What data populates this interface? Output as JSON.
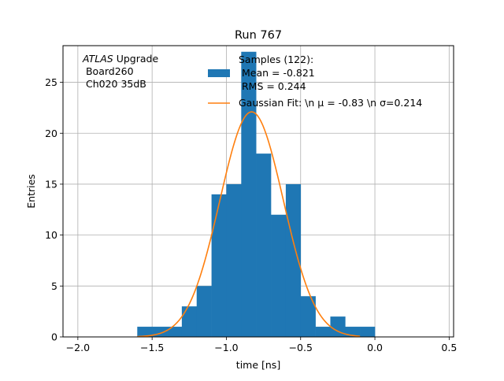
{
  "chart_data": {
    "type": "bar",
    "title": "Run 767",
    "xlabel": "time [ns]",
    "ylabel": "Entries",
    "xlim": [
      -2.1,
      0.53
    ],
    "ylim": [
      0,
      28.6
    ],
    "grid": true,
    "xticks": [
      -2.0,
      -1.5,
      -1.0,
      -0.5,
      0.0,
      0.5
    ],
    "xtick_labels": [
      "−2.0",
      "−1.5",
      "−1.0",
      "−0.5",
      "0.0",
      "0.5"
    ],
    "yticks": [
      0,
      5,
      10,
      15,
      20,
      25
    ],
    "ytick_labels": [
      "0",
      "5",
      "10",
      "15",
      "20",
      "25"
    ],
    "histogram": {
      "bin_edges": [
        -1.6,
        -1.5,
        -1.4,
        -1.3,
        -1.2,
        -1.1,
        -1.0,
        -0.9,
        -0.8,
        -0.7,
        -0.6,
        -0.5,
        -0.4,
        -0.3,
        -0.2,
        -0.1,
        0.0
      ],
      "counts": [
        1,
        1,
        1,
        3,
        5,
        14,
        15,
        28,
        18,
        12,
        15,
        4,
        1,
        2,
        1,
        1
      ],
      "color": "#1f77b4"
    },
    "fit": {
      "type": "gaussian",
      "mu": -0.83,
      "sigma": 0.214,
      "peak": 22.1,
      "x_range": [
        -1.6,
        -0.1
      ],
      "color": "#ff7f0e"
    },
    "text_annotation": {
      "line1_italic": "ATLAS",
      "line1_rest": " Upgrade",
      "line2": " Board260",
      "line3": " Ch020 35dB"
    },
    "legend": {
      "position": "top-right",
      "hist_label_lines": [
        "Samples (122):",
        " Mean = -0.821",
        " RMS = 0.244"
      ],
      "fit_label": "Gaussian Fit: \\n μ = -0.83 \\n σ=0.214"
    }
  }
}
